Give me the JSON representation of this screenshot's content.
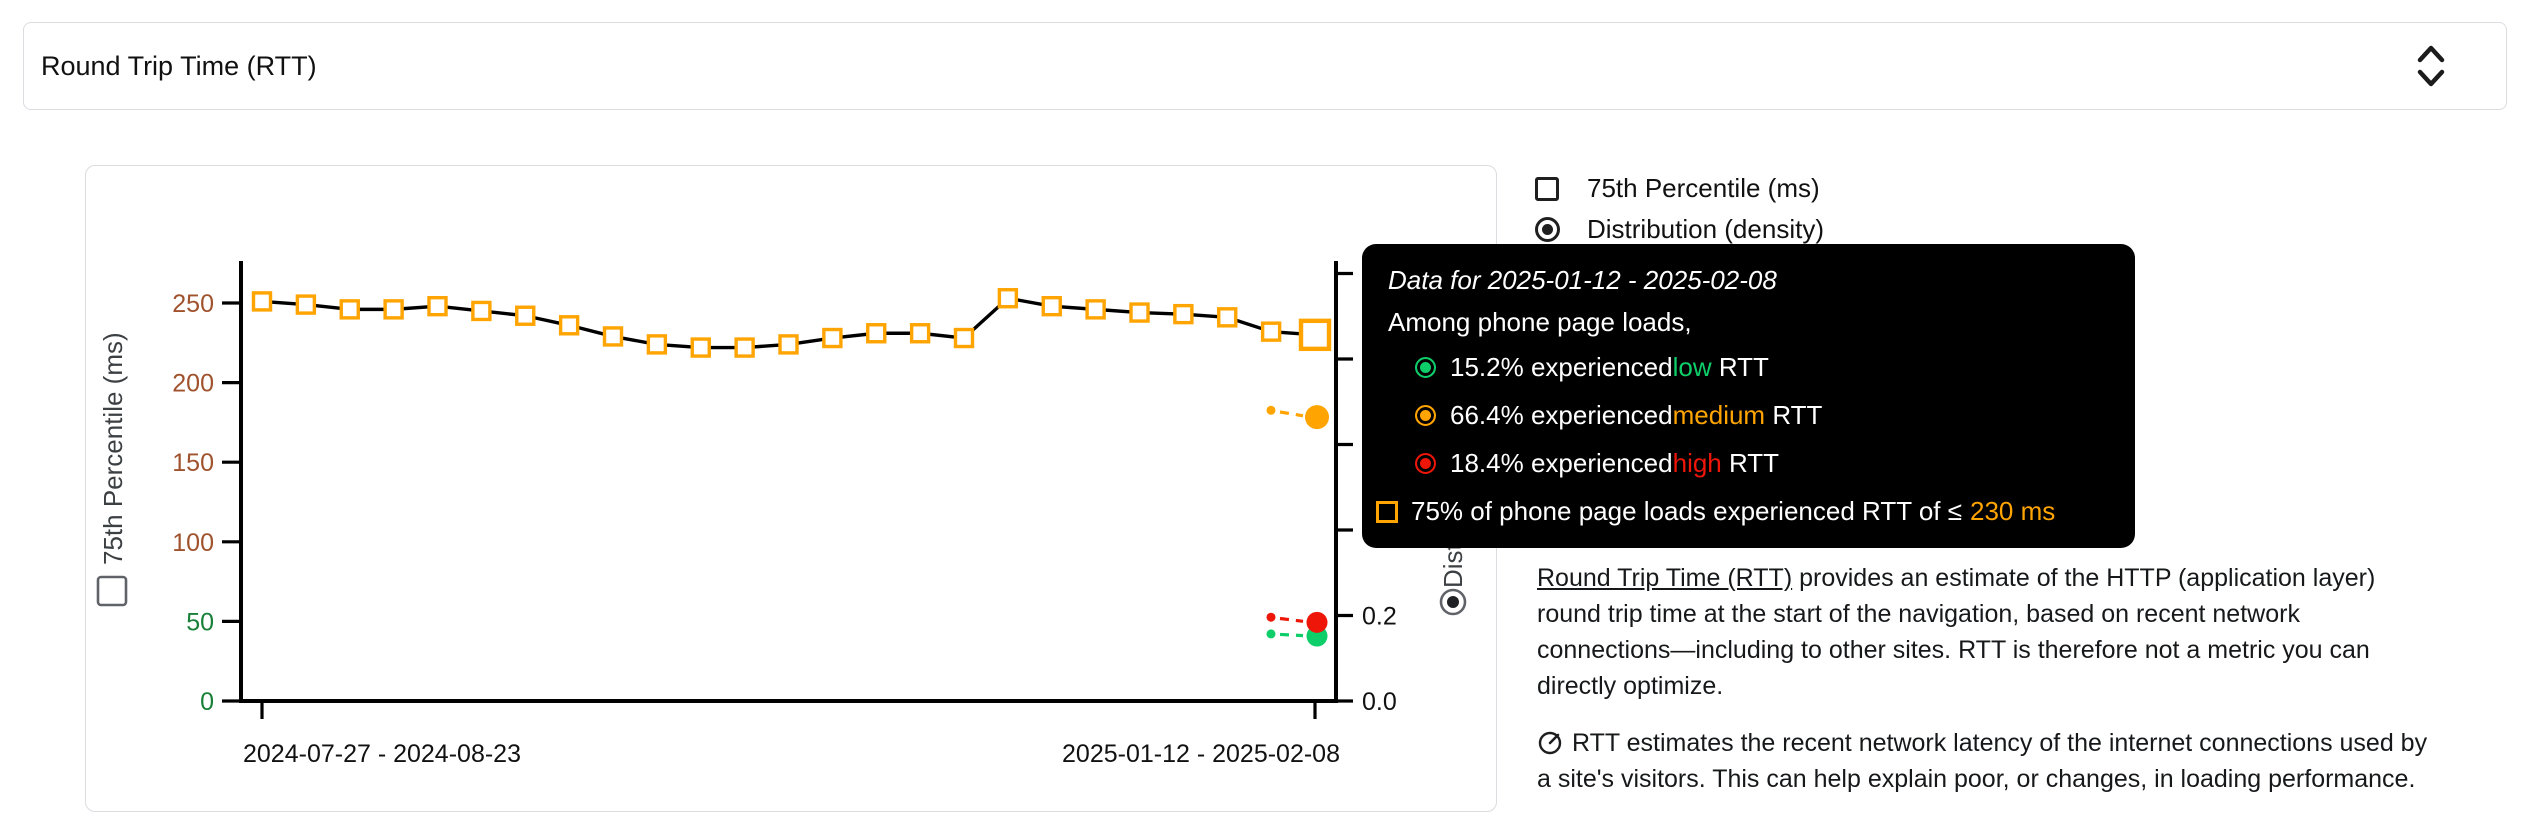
{
  "header": {
    "title": "Round Trip Time (RTT)",
    "dropdown_icon": "unfold-more-icon"
  },
  "legend": {
    "items": [
      {
        "label": "75th Percentile (ms)",
        "control": "checkbox",
        "state": "unchecked"
      },
      {
        "label": "Distribution (density)",
        "control": "radio",
        "state": "selected"
      }
    ]
  },
  "tooltip": {
    "title": "Data for 2025-01-12 - 2025-02-08",
    "subtitle": "Among phone page loads,",
    "rows": [
      {
        "pct": "15.2%",
        "verb": "experienced",
        "quality": "low",
        "suffix": "RTT",
        "color": "#0ECE6A",
        "icon": "low-density-circle-icon"
      },
      {
        "pct": "66.4%",
        "verb": "experienced",
        "quality": "medium",
        "suffix": "RTT",
        "color": "#FFA400",
        "icon": "medium-density-circle-icon"
      },
      {
        "pct": "18.4%",
        "verb": "experienced",
        "quality": "high",
        "suffix": "RTT",
        "color": "#ED1608",
        "icon": "high-density-circle-icon"
      }
    ],
    "p75_prefix": "75% of phone page loads experienced RTT of ≤",
    "p75_value": "230 ms",
    "p75_color": "#FFA400"
  },
  "chart_data": {
    "type": "line",
    "title": "",
    "x_tick_labels": [
      "2024-07-27 - 2024-08-23",
      "2025-01-12 - 2025-02-08"
    ],
    "y_axis_left": {
      "label": "75th Percentile (ms)",
      "ticks": [
        0,
        50,
        100,
        150,
        200,
        250
      ],
      "range": [
        0,
        276
      ],
      "green_max": 75,
      "green_color": "#188038",
      "brown_color": "#A0522D"
    },
    "y_axis_right": {
      "label": "Distribution (density)",
      "tick_step": 0.2,
      "visible_tick_labels": [
        {
          "label": "0.0",
          "value": 0
        },
        {
          "label": "0.2",
          "value": 0.2
        }
      ],
      "range": [
        0,
        1.03
      ]
    },
    "series": [
      {
        "name": "75th Percentile (ms)",
        "marker": "square",
        "marker_color": "#FFA400",
        "line_color": "#000000",
        "values": [
          251,
          249,
          246,
          246,
          248,
          245,
          242,
          236,
          229,
          224,
          222,
          222,
          224,
          228,
          231,
          231,
          228,
          253,
          248,
          246,
          244,
          243,
          241,
          232,
          230
        ]
      }
    ],
    "highlighted_point": {
      "index": 24,
      "value": 230,
      "period": "2025-01-12 - 2025-02-08"
    },
    "density_markers": [
      {
        "name": "low",
        "color": "#0ECE6A",
        "current": 0.152,
        "previous": 0.157
      },
      {
        "name": "medium",
        "color": "#FFA400",
        "current": 0.664,
        "previous": 0.68
      },
      {
        "name": "high",
        "color": "#ED1608",
        "current": 0.184,
        "previous": 0.196
      }
    ],
    "legend_position": "top-right",
    "grid": false
  },
  "description": {
    "link_text": "Round Trip Time (RTT)",
    "p1_rest": " provides an estimate of the HTTP (application layer) round trip time at the start of the navigation, based on recent network connections—including to other sites. RTT is therefore not a metric you can directly optimize.",
    "p2_icon": "gauge-icon",
    "p2_text": "RTT estimates the recent network latency of the internet connections used by a site's visitors. This can help explain poor, or changes, in loading performance."
  },
  "colors": {
    "border": "#dadce0",
    "text": "#202124",
    "tooltip_bg": "#000000"
  }
}
